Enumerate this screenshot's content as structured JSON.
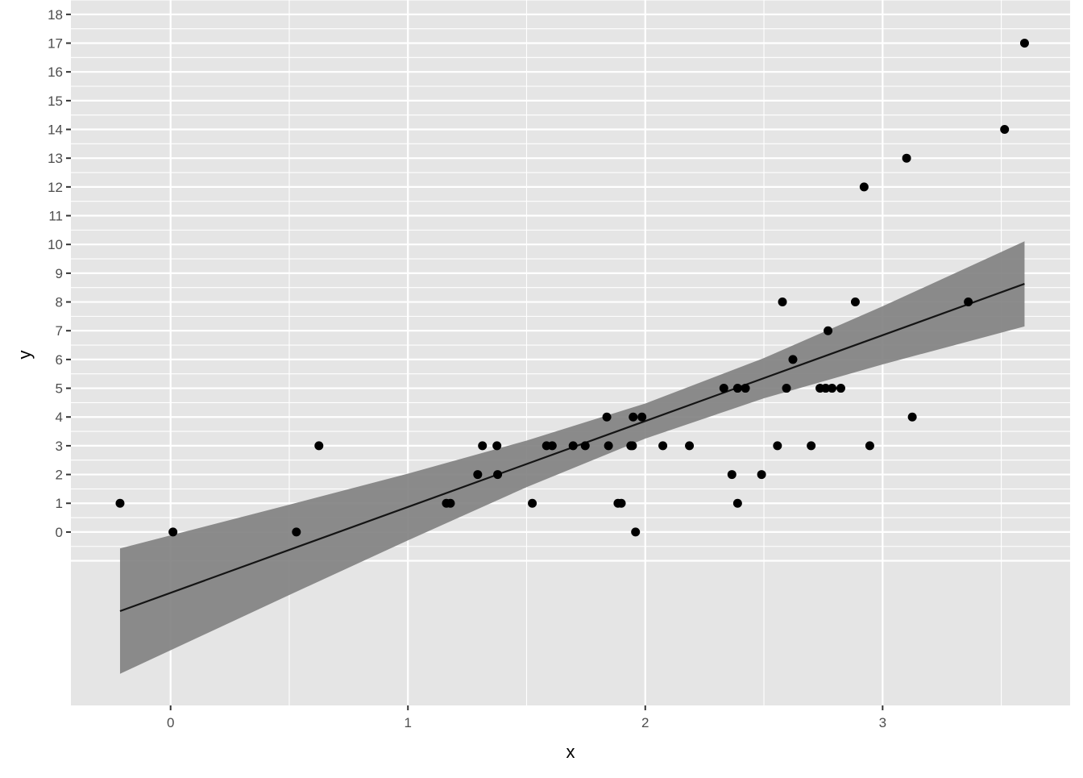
{
  "chart_data": {
    "type": "scatter",
    "title": "",
    "xlabel": "x",
    "ylabel": "y",
    "xlim": [
      -0.42,
      3.79
    ],
    "ylim": [
      -6.03,
      18.5
    ],
    "x_ticks": [
      0,
      1,
      2,
      3
    ],
    "y_ticks": [
      0,
      1,
      2,
      3,
      4,
      5,
      6,
      7,
      8,
      9,
      10,
      11,
      12,
      13,
      14,
      15,
      16,
      17,
      18
    ],
    "grid": true,
    "colors": {
      "panel": "#e5e5e5",
      "grid": "#ffffff",
      "point": "#000000",
      "ribbon": "#808080",
      "line": "#141414",
      "tick_text": "#4d4d4d"
    },
    "points": [
      [
        -0.213,
        1
      ],
      [
        0.01,
        0
      ],
      [
        0.53,
        0
      ],
      [
        0.625,
        3
      ],
      [
        1.162,
        1
      ],
      [
        1.179,
        1
      ],
      [
        1.294,
        2
      ],
      [
        1.314,
        3
      ],
      [
        1.375,
        3
      ],
      [
        1.378,
        2
      ],
      [
        1.524,
        1
      ],
      [
        1.584,
        3
      ],
      [
        1.608,
        3
      ],
      [
        1.696,
        3
      ],
      [
        1.747,
        3
      ],
      [
        1.838,
        4
      ],
      [
        1.845,
        3
      ],
      [
        1.885,
        1
      ],
      [
        1.899,
        1
      ],
      [
        1.939,
        3
      ],
      [
        1.946,
        3
      ],
      [
        1.949,
        4
      ],
      [
        1.959,
        0
      ],
      [
        1.986,
        4
      ],
      [
        2.074,
        3
      ],
      [
        2.186,
        3
      ],
      [
        2.331,
        5
      ],
      [
        2.365,
        2
      ],
      [
        2.389,
        5
      ],
      [
        2.389,
        1
      ],
      [
        2.422,
        5
      ],
      [
        2.49,
        2
      ],
      [
        2.557,
        3
      ],
      [
        2.578,
        8
      ],
      [
        2.595,
        5
      ],
      [
        2.622,
        6
      ],
      [
        2.699,
        3
      ],
      [
        2.736,
        5
      ],
      [
        2.76,
        5
      ],
      [
        2.77,
        7
      ],
      [
        2.787,
        5
      ],
      [
        2.824,
        5
      ],
      [
        2.885,
        8
      ],
      [
        2.922,
        12
      ],
      [
        2.946,
        3
      ],
      [
        3.101,
        13
      ],
      [
        3.125,
        4
      ],
      [
        3.361,
        8
      ],
      [
        3.514,
        14
      ],
      [
        3.598,
        17
      ]
    ],
    "fit_line": {
      "x": [
        -0.213,
        3.598
      ],
      "y": [
        -2.75,
        8.63
      ]
    },
    "confidence_band": {
      "x": [
        -0.213,
        0.5,
        1,
        1.5,
        2,
        2.5,
        3,
        3.598
      ],
      "lower": [
        -4.93,
        -2.19,
        -0.29,
        1.56,
        3.25,
        4.65,
        5.83,
        7.15
      ],
      "upper": [
        -0.57,
        0.95,
        2.03,
        3.18,
        4.47,
        6.05,
        7.85,
        10.11
      ]
    }
  }
}
